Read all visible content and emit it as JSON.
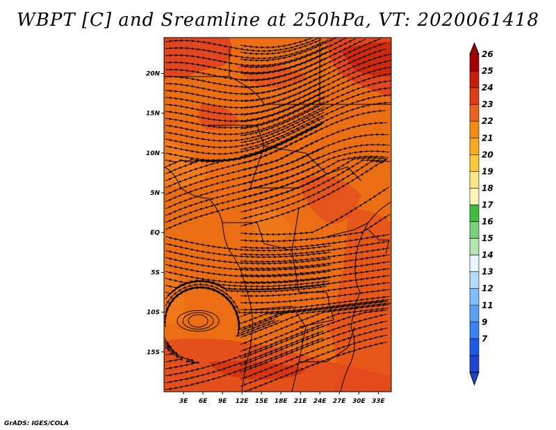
{
  "title": "WBPT [C] and Sreamline at 250hPa, VT: 2020061418",
  "credit": "GrADS: IGES/COLA",
  "map": {
    "lat_labels": [
      "20N",
      "15N",
      "10N",
      "5N",
      "EQ",
      "5S",
      "10S",
      "15S"
    ],
    "lat_values": [
      20,
      15,
      10,
      5,
      0,
      -5,
      -10,
      -15
    ],
    "lon_labels": [
      "3E",
      "6E",
      "9E",
      "12E",
      "15E",
      "18E",
      "21E",
      "24E",
      "27E",
      "30E",
      "33E"
    ],
    "lon_values": [
      3,
      6,
      9,
      12,
      15,
      18,
      21,
      24,
      27,
      30,
      33
    ],
    "lat_range": [
      -20,
      24.5
    ],
    "lon_range": [
      0,
      35
    ]
  },
  "colorbar": {
    "labels": [
      "26",
      "25",
      "24",
      "23",
      "22",
      "21",
      "20",
      "19",
      "18",
      "17",
      "16",
      "15",
      "14",
      "13",
      "12",
      "11",
      "9",
      "7"
    ],
    "colors": [
      "#a50000",
      "#c81e0a",
      "#e13c14",
      "#eb641e",
      "#f58c14",
      "#faaa1e",
      "#fac83c",
      "#fae682",
      "#fff5b4",
      "#3cbe3c",
      "#78d278",
      "#b4e6b4",
      "#e6f5ff",
      "#b4dcfa",
      "#82beff",
      "#5aa0f5",
      "#3c82f0",
      "#1e5ae6",
      "#1e46d2"
    ],
    "ticks_left": 691,
    "arrow_top_color": "#a50000",
    "arrow_bottom_color": "#1e46d2"
  },
  "field_colors": {
    "base": "#eb6e14",
    "warm": "#e1461e",
    "cool": "#f5821e"
  }
}
